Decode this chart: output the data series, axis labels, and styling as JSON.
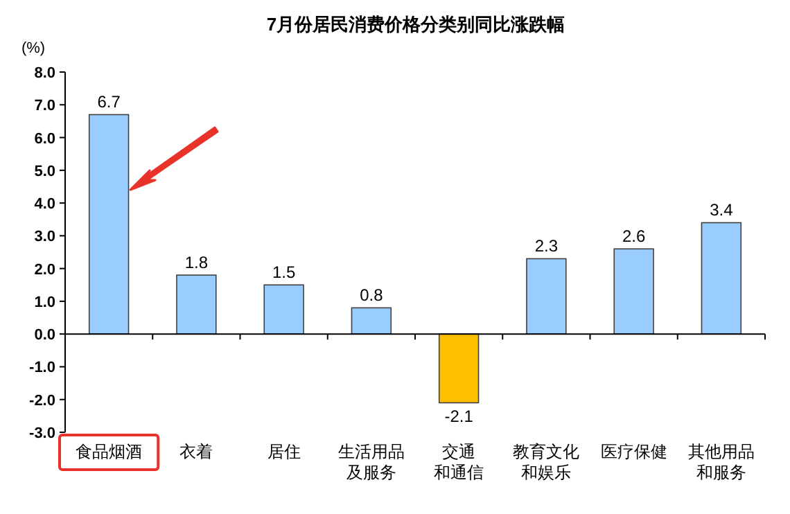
{
  "chart_data": {
    "type": "bar",
    "title": "7月份居民消费价格分类别同比涨跌幅",
    "ylabel": "(%)",
    "categories": [
      "食品烟酒",
      "衣着",
      "居住",
      "生活用品及服务",
      "交通和通信",
      "教育文化和娱乐",
      "医疗保健",
      "其他用品和服务"
    ],
    "values": [
      6.7,
      1.8,
      1.5,
      0.8,
      -2.1,
      2.3,
      2.6,
      3.4
    ],
    "colors": [
      "#99ccff",
      "#99ccff",
      "#99ccff",
      "#99ccff",
      "#ffc000",
      "#99ccff",
      "#99ccff",
      "#99ccff"
    ],
    "ylim": [
      -3,
      8
    ],
    "yticks": [
      {
        "value": 8,
        "label": "8.0"
      },
      {
        "value": 7,
        "label": "7.0"
      },
      {
        "value": 6,
        "label": "6.0"
      },
      {
        "value": 5,
        "label": "5.0"
      },
      {
        "value": 4,
        "label": "4.0"
      },
      {
        "value": 3,
        "label": "3.0"
      },
      {
        "value": 2,
        "label": "2.0"
      },
      {
        "value": 1,
        "label": "1.0"
      },
      {
        "value": 0,
        "label": "0.0"
      },
      {
        "value": -1,
        "label": "-1.0"
      },
      {
        "value": -2,
        "label": "-2.0"
      },
      {
        "value": -3,
        "label": "-3.0"
      }
    ],
    "data_labels": true
  }
}
